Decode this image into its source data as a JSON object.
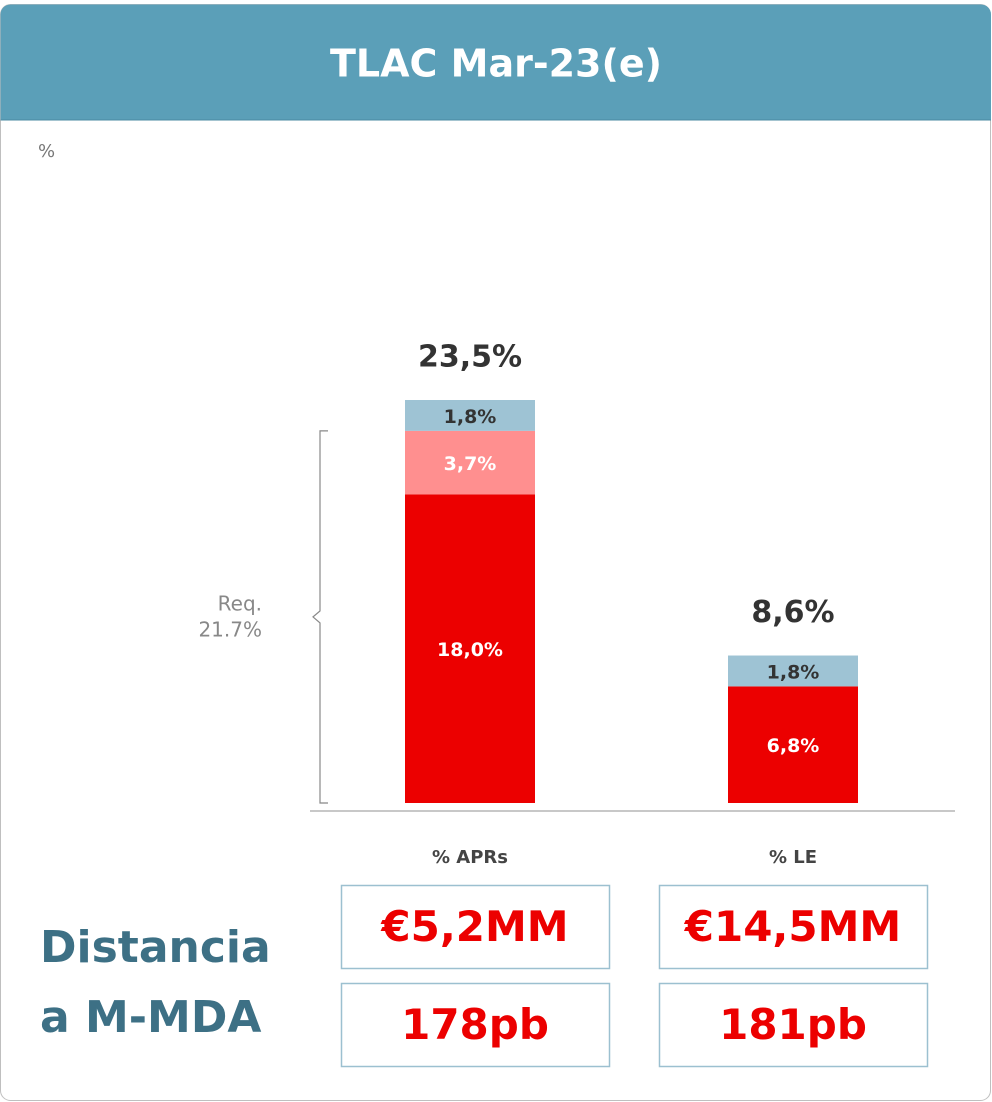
{
  "chart_data": {
    "type": "stacked_bar",
    "title": "TLAC Mar-23(e)",
    "unit_label": "%",
    "categories": [
      "% APRs",
      "% LE"
    ],
    "series": [
      {
        "color": "#ec0000",
        "label_color": "#ffffff",
        "values": [
          18.0,
          6.8
        ],
        "value_labels": [
          "18,0%",
          "6,8%"
        ]
      },
      {
        "color": "#ff8f8f",
        "label_color": "#ffffff",
        "values": [
          3.7,
          null
        ],
        "value_labels": [
          "3,7%",
          null
        ]
      },
      {
        "color": "#9ec3d4",
        "label_color": "#333333",
        "values": [
          1.8,
          1.8
        ],
        "value_labels": [
          "1,8%",
          "1,8%"
        ]
      }
    ],
    "totals": [
      23.5,
      8.6
    ],
    "total_labels": [
      "23,5%",
      "8,6%"
    ],
    "annotation": {
      "lines": [
        "Req.",
        "21.7%"
      ],
      "value": 21.7
    }
  },
  "footer": {
    "title": [
      "Distancia",
      "a M-MDA"
    ],
    "rows": [
      [
        "€5,2MM",
        "€14,5MM"
      ],
      [
        "178pb",
        "181pb"
      ]
    ]
  }
}
